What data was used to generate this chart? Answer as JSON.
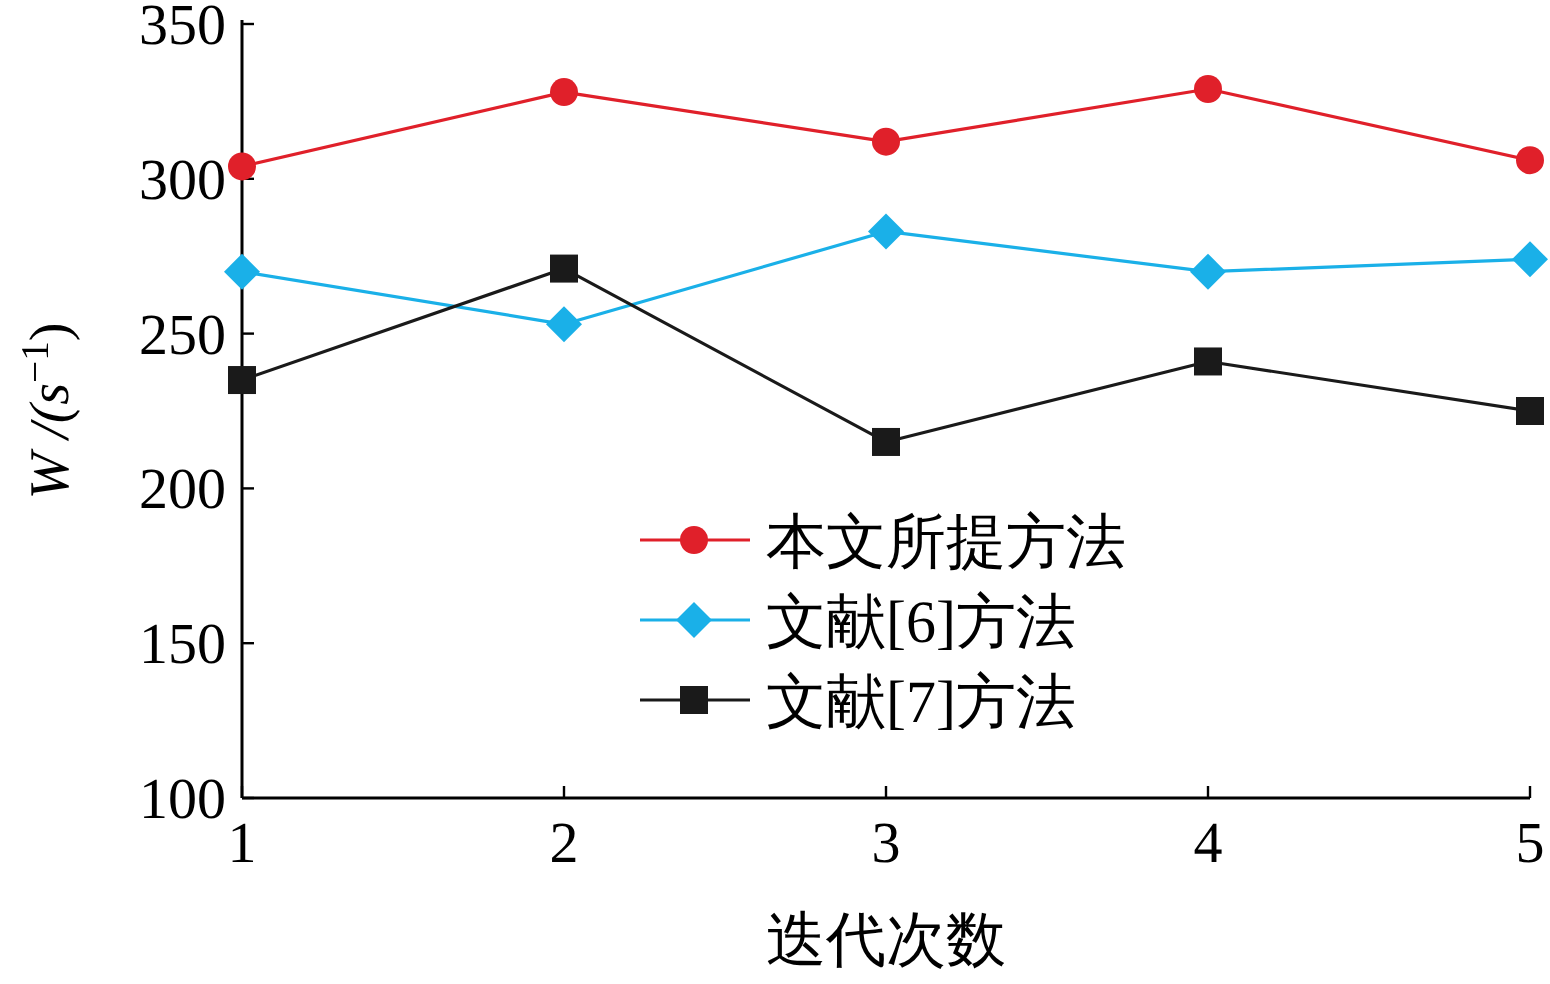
{
  "chart_data": {
    "type": "line",
    "xlabel": "迭代次数",
    "ylabel": "W /(s$^{−1}$)",
    "x": [
      1,
      2,
      3,
      4,
      5
    ],
    "xlim": [
      1,
      5
    ],
    "xticks": [
      1,
      2,
      3,
      4,
      5
    ],
    "ylim": [
      100,
      350
    ],
    "yticks": [
      100,
      150,
      200,
      250,
      300,
      350
    ],
    "legend": "bottom",
    "grid": false,
    "line_style": "solid",
    "series": [
      {
        "name": "本文所提方法",
        "color": "#e0202a",
        "marker": "circle",
        "values": [
          304,
          328,
          312,
          329,
          306
        ]
      },
      {
        "name": "文献[6]方法",
        "color": "#1ab0e8",
        "marker": "diamond",
        "values": [
          270,
          253,
          283,
          270,
          274
        ]
      },
      {
        "name": "文献[7]方法",
        "color": "#1a1a1a",
        "marker": "square",
        "values": [
          235,
          271,
          215,
          241,
          225
        ]
      }
    ]
  }
}
